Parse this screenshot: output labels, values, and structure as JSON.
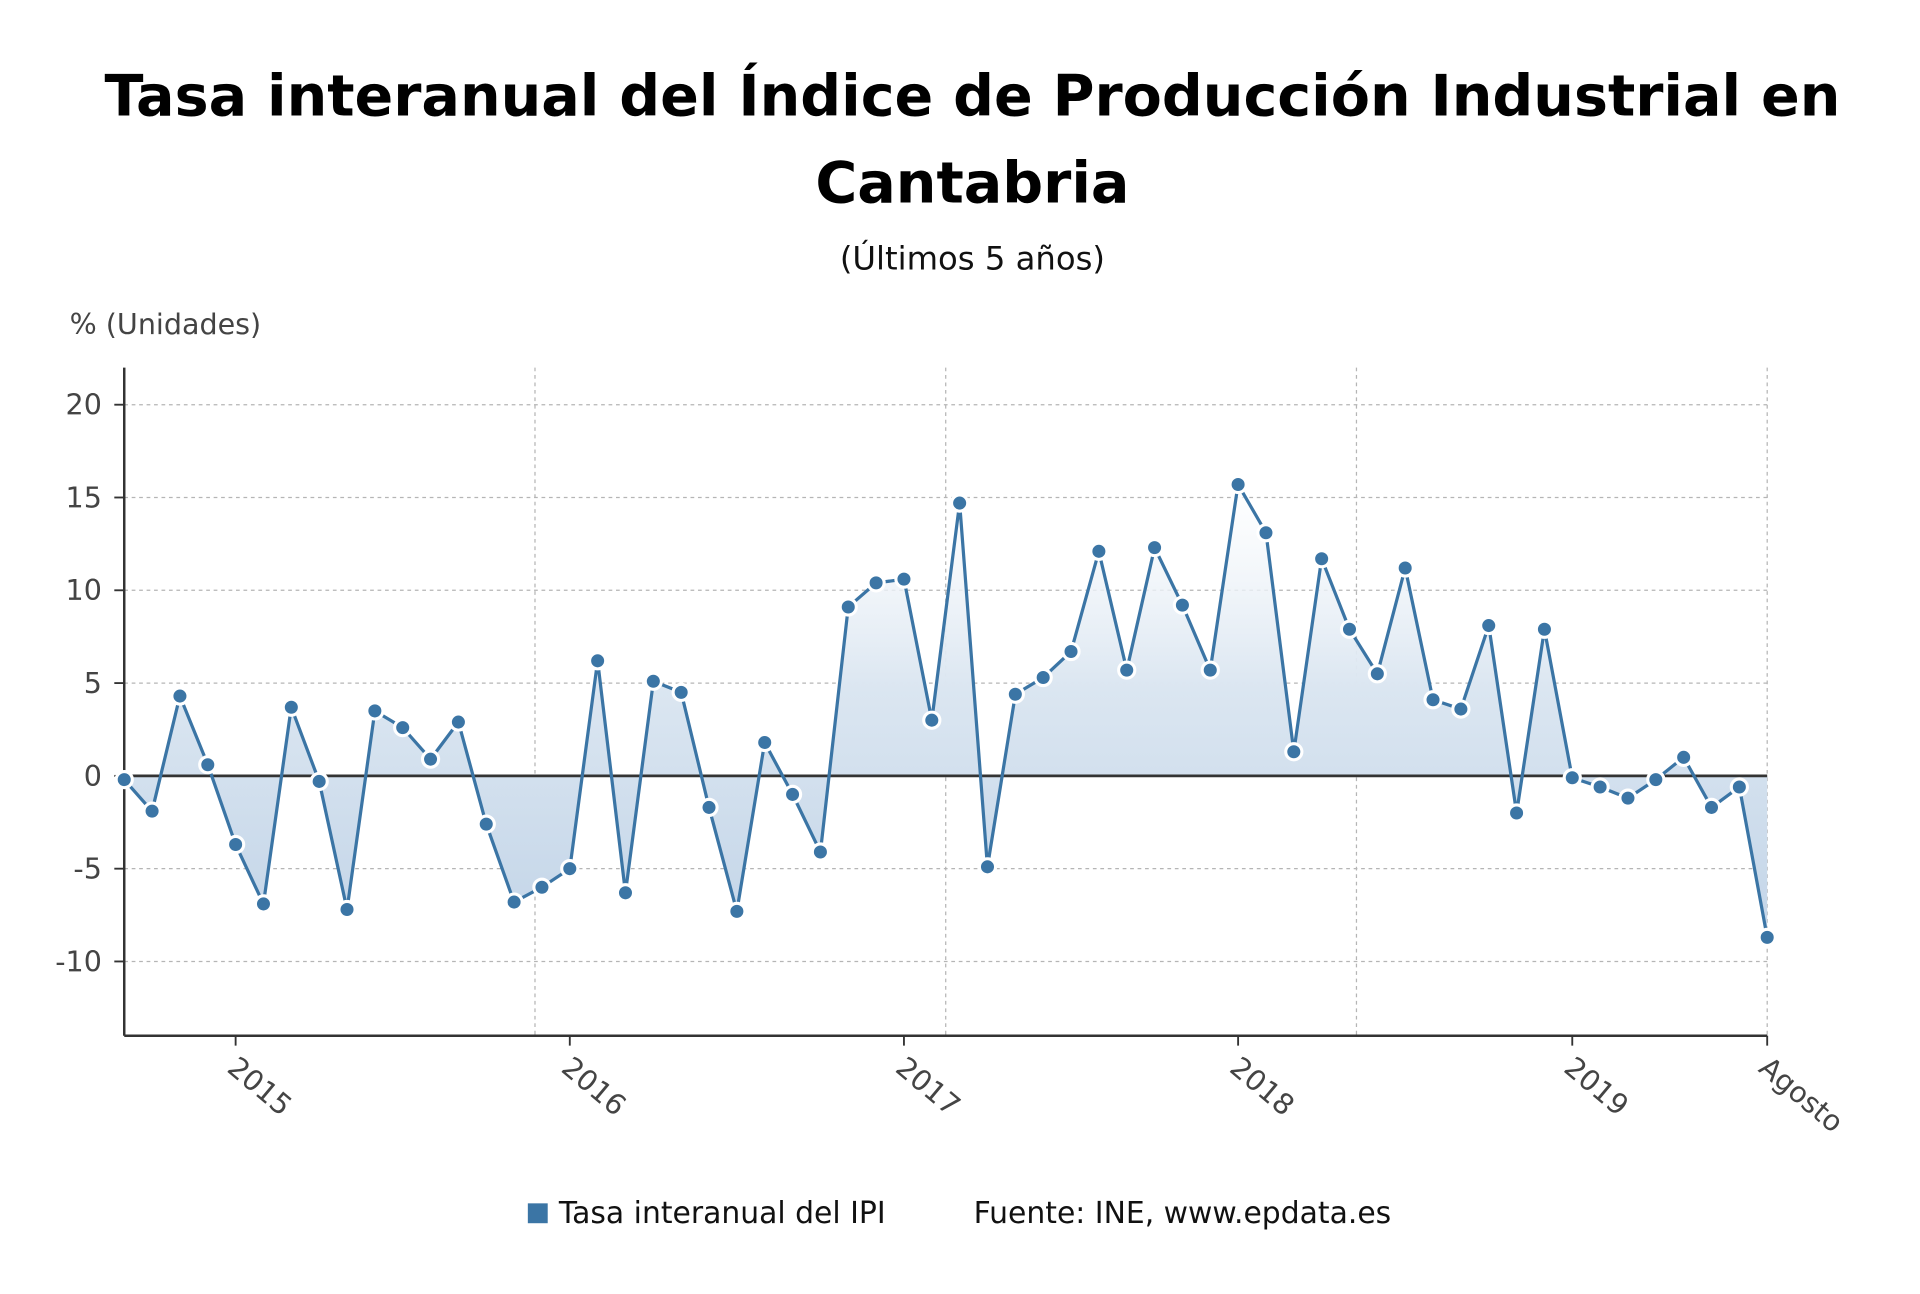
{
  "chart_data": {
    "type": "line",
    "title_line1": "Tasa interanual del Índice de Producción Industrial en",
    "title_line2": "Cantabria",
    "subtitle": "(Últimos 5 años)",
    "ylabel": "% (Unidades)",
    "xlabel": "",
    "x_start": "2014-09",
    "x_end": "2019-08",
    "xticks": [
      {
        "label": "2015",
        "date": "2015-01"
      },
      {
        "label": "2016",
        "date": "2016-01"
      },
      {
        "label": "2017",
        "date": "2017-01"
      },
      {
        "label": "2018",
        "date": "2018-01"
      },
      {
        "label": "2019",
        "date": "2019-01"
      },
      {
        "label": "Agosto",
        "date": "2019-08"
      }
    ],
    "yticks": [
      20,
      15,
      10,
      5,
      0,
      -5,
      -10
    ],
    "ylim": [
      -14,
      22
    ],
    "grid": true,
    "area_fill": true,
    "legend_position": "bottom",
    "series": [
      {
        "name": "Tasa interanual del IPI",
        "color": "#3b75a5",
        "values": [
          -0.2,
          -1.9,
          4.3,
          0.6,
          -3.7,
          -6.9,
          3.7,
          -0.3,
          -7.2,
          3.5,
          2.6,
          0.9,
          2.9,
          -2.6,
          -6.8,
          -6.0,
          -5.0,
          6.2,
          -6.3,
          5.1,
          4.5,
          -1.7,
          -7.3,
          1.8,
          -1.0,
          -4.1,
          9.1,
          10.4,
          10.6,
          3.0,
          14.7,
          -4.9,
          4.4,
          5.3,
          6.7,
          12.1,
          5.7,
          12.3,
          9.2,
          5.7,
          15.7,
          13.1,
          1.3,
          11.7,
          7.9,
          5.5,
          11.2,
          4.1,
          3.6,
          8.1,
          -2.0,
          7.9,
          -0.1,
          -0.6,
          -1.2,
          -0.2,
          1.0,
          -1.7,
          -0.6,
          -8.7
        ]
      }
    ],
    "source": "Fuente: INE, www.epdata.es"
  }
}
